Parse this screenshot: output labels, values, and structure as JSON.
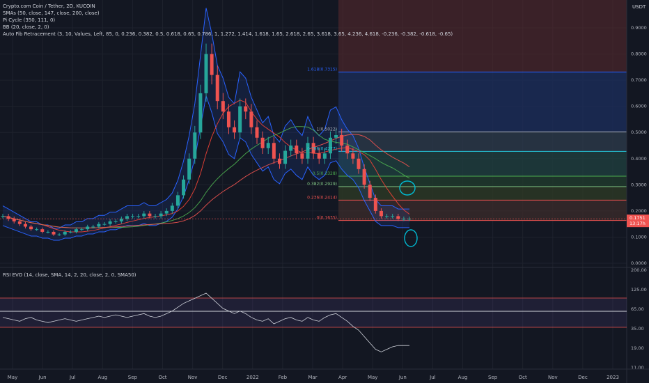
{
  "legend": {
    "title": "Crypto.com Coin / Tether, 2D, KUCOIN",
    "smas": "SMAs (50, close, 147, close, 200, close)",
    "pi": "Pi Cycle (350, 111, 0)",
    "bb": "BB (20, close, 2, 0)",
    "fib": "Auto Fib Retracement (3, 10, Values, Left, 85, 0, 0.236, 0.382, 0.5, 0.618, 0.65, 0.786, 1, 1.272, 1.414, 1.618, 1.65, 2.618, 2.65, 3.618, 3.65, 4.236, 4.618, -0.236, -0.382, -0.618, -0.65)"
  },
  "rsi_legend": "RSI EVO (14, close, SMA, 14, 2, 20, close, 2, 0, SMA50)",
  "currency": "USDT",
  "colors": {
    "up": "#26a69a",
    "down": "#ef5350",
    "bb": "#2962ff",
    "sma50": "#f44336",
    "sma147": "#4caf50",
    "sma200": "#ef5350",
    "fib_red": "#5b2a2e",
    "fib_blue": "#1c2d5a",
    "annotation": "#00bcd4",
    "rsi": "#d1d4dc"
  },
  "chart_data": {
    "type": "candlestick",
    "x_ticks": [
      "May",
      "Jun",
      "Jul",
      "Aug",
      "Sep",
      "Oct",
      "Nov",
      "Dec",
      "2022",
      "Feb",
      "Mar",
      "Apr",
      "May",
      "Jun",
      "Jul",
      "Aug",
      "Sep",
      "Oct",
      "Nov",
      "Dec",
      "2023"
    ],
    "y_ticks": [
      "0.9000",
      "0.8000",
      "0.7000",
      "0.6000",
      "0.5000",
      "0.4000",
      "0.3000",
      "0.2000",
      "0.1000",
      "0.0000"
    ],
    "ylim": [
      0,
      0.98
    ],
    "price_labels": [
      "0.1751",
      "13:17h"
    ],
    "fib_levels": [
      {
        "label": "1.618(0.7315)",
        "value": 0.7315
      },
      {
        "label": "1(0.5022)",
        "value": 0.5022
      },
      {
        "label": "0.786(0.4277)",
        "value": 0.4277
      },
      {
        "label": "0.5(0.3328)",
        "value": 0.3328
      },
      {
        "label": "0.382(0.2929)",
        "value": 0.2929
      },
      {
        "label": "0.236(0.2414)",
        "value": 0.2414
      },
      {
        "label": "0(0.1635)",
        "value": 0.1635
      }
    ],
    "close_series": [
      0.18,
      0.17,
      0.16,
      0.15,
      0.14,
      0.13,
      0.13,
      0.12,
      0.12,
      0.11,
      0.11,
      0.12,
      0.12,
      0.13,
      0.13,
      0.14,
      0.14,
      0.15,
      0.15,
      0.16,
      0.16,
      0.17,
      0.18,
      0.18,
      0.18,
      0.19,
      0.18,
      0.18,
      0.19,
      0.2,
      0.22,
      0.26,
      0.32,
      0.4,
      0.5,
      0.65,
      0.8,
      0.72,
      0.62,
      0.58,
      0.52,
      0.5,
      0.6,
      0.58,
      0.52,
      0.48,
      0.44,
      0.46,
      0.4,
      0.38,
      0.43,
      0.45,
      0.42,
      0.4,
      0.46,
      0.42,
      0.4,
      0.42,
      0.48,
      0.49,
      0.45,
      0.42,
      0.4,
      0.36,
      0.3,
      0.25,
      0.2,
      0.18,
      0.18,
      0.18,
      0.17,
      0.17,
      0.17
    ],
    "rsi": {
      "ticks": [
        "200.00",
        "125.00",
        "65.00",
        "35.00",
        "19.00",
        "11.00"
      ],
      "values": [
        55,
        54,
        53,
        52,
        54,
        55,
        53,
        52,
        51,
        52,
        53,
        54,
        53,
        52,
        53,
        54,
        55,
        56,
        55,
        56,
        57,
        56,
        55,
        56,
        57,
        58,
        56,
        55,
        56,
        58,
        60,
        63,
        66,
        68,
        70,
        72,
        74,
        70,
        66,
        62,
        60,
        58,
        60,
        58,
        55,
        53,
        52,
        54,
        50,
        52,
        54,
        55,
        53,
        52,
        55,
        53,
        52,
        55,
        57,
        58,
        55,
        52,
        48,
        45,
        40,
        35,
        30,
        28,
        30,
        32,
        33,
        33,
        33
      ]
    }
  }
}
